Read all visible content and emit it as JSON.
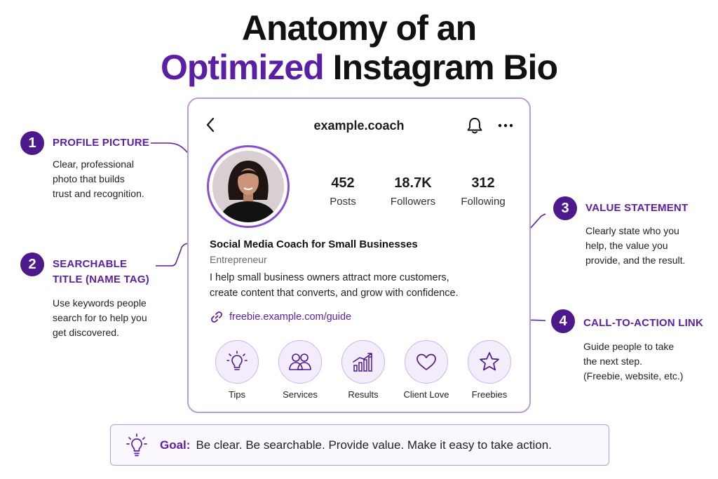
{
  "title": {
    "line1": "Anatomy of an",
    "line2_accent": "Optimized",
    "line2_rest": "Instagram Bio"
  },
  "profile": {
    "handle": "example.coach",
    "stats": [
      {
        "value": "452",
        "label": "Posts"
      },
      {
        "value": "18.7K",
        "label": "Followers"
      },
      {
        "value": "312",
        "label": "Following"
      }
    ],
    "name": "Social Media Coach for Small Businesses",
    "category": "Entrepreneur",
    "bio_line1": "I help small business owners attract more customers,",
    "bio_line2": "create content that converts, and grow with confidence.",
    "link": "freebie.example.com/guide",
    "highlights": [
      {
        "label": "Tips",
        "icon": "lightbulb-icon"
      },
      {
        "label": "Services",
        "icon": "people-icon"
      },
      {
        "label": "Results",
        "icon": "growth-chart-icon"
      },
      {
        "label": "Client Love",
        "icon": "heart-icon"
      },
      {
        "label": "Freebies",
        "icon": "star-icon"
      }
    ]
  },
  "annotations": [
    {
      "number": "1",
      "title": "PROFILE PICTURE",
      "desc": [
        "Clear, professional",
        "photo that builds",
        "trust and recognition."
      ]
    },
    {
      "number": "2",
      "title_lines": [
        "SEARCHABLE",
        "TITLE (NAME TAG)"
      ],
      "desc": [
        "Use keywords people",
        "search for to help you",
        "get discovered."
      ]
    },
    {
      "number": "3",
      "title": "VALUE STATEMENT",
      "desc": [
        "Clearly state who you",
        "help, the value you",
        "provide, and the result."
      ]
    },
    {
      "number": "4",
      "title": "CALL-TO-ACTION LINK",
      "desc": [
        "Guide people to take",
        "the next step.",
        "(Freebie, website, etc.)"
      ]
    }
  ],
  "goal": {
    "label": "Goal:",
    "text": "Be clear. Be searchable. Provide value. Make it easy to take action."
  },
  "colors": {
    "accent": "#5b1fa6",
    "badge": "#4c1a8c",
    "border": "#b99ae0"
  }
}
